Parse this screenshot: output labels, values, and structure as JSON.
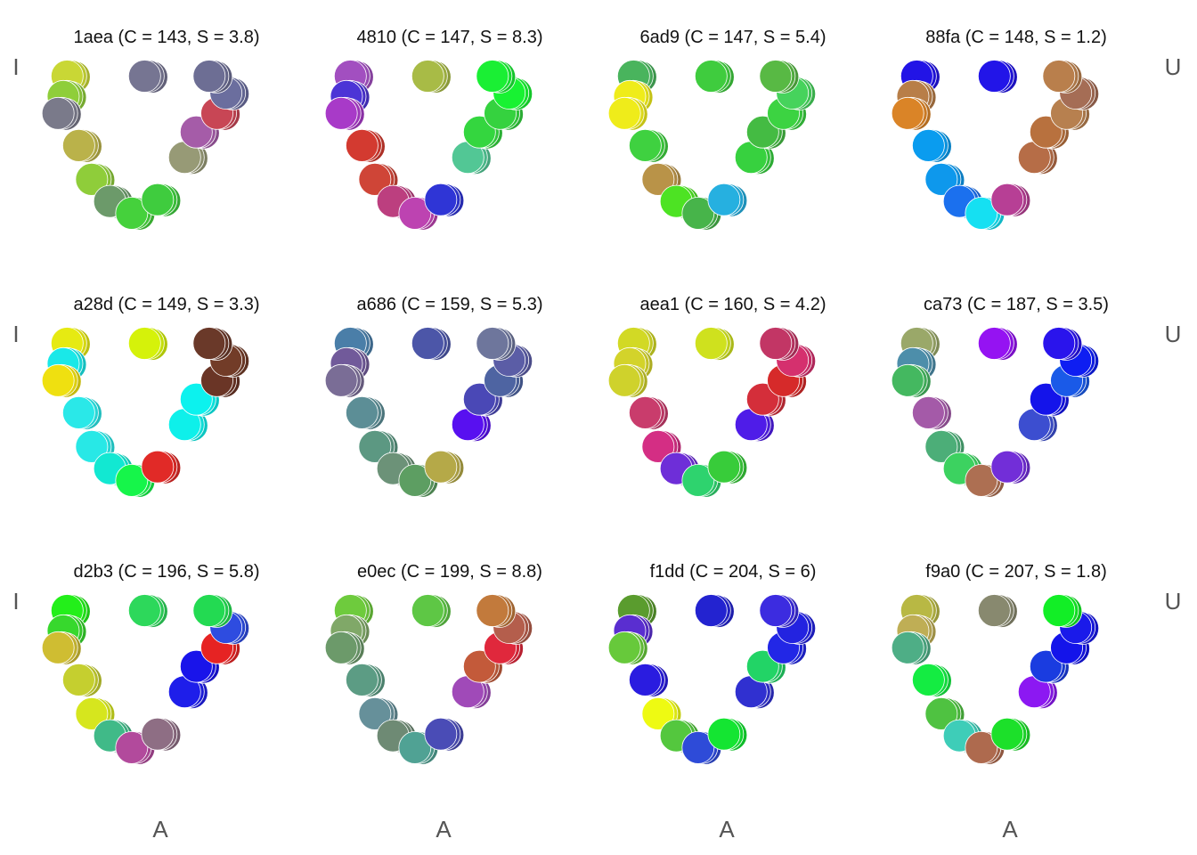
{
  "chart_data": {
    "type": "scatter",
    "title": "",
    "xlabel": "",
    "ylabel": "",
    "grid": false,
    "legend": "none",
    "vowel_labels": {
      "left": "I",
      "right": "U",
      "bottom": "A"
    },
    "xlim": [
      0,
      20
    ],
    "ylim": [
      0,
      13
    ],
    "positions": [
      [
        2.3,
        12.5
      ],
      [
        2.0,
        11.3
      ],
      [
        1.6,
        10.3
      ],
      [
        3.2,
        8.4
      ],
      [
        4.2,
        6.4
      ],
      [
        5.6,
        5.1
      ],
      [
        7.3,
        4.4
      ],
      [
        9.3,
        5.2
      ],
      [
        11.4,
        7.7
      ],
      [
        12.3,
        9.2
      ],
      [
        13.9,
        10.3
      ],
      [
        14.6,
        11.5
      ],
      [
        13.3,
        12.5
      ],
      [
        8.3,
        12.5
      ]
    ],
    "panels": [
      {
        "title": "1aea (C = 143, S = 3.8)",
        "colors": [
          "#c9d735",
          "#8fce3a",
          "#7a7a8a",
          "#bab24a",
          "#8fcd3a",
          "#6c9a6a",
          "#45d13c",
          "#3fcc3e",
          "#979a76",
          "#a55ca8",
          "#c84655",
          "#6b6e9e",
          "#6d6e94",
          "#767592"
        ]
      },
      {
        "title": "4810 (C = 147, S = 8.3)",
        "colors": [
          "#a24fc0",
          "#4c34d6",
          "#a83ac8",
          "#d33a30",
          "#cf4537",
          "#bc3f7f",
          "#bd43b1",
          "#2f35d6",
          "#52c795",
          "#34d63f",
          "#35d23f",
          "#18f232",
          "#1aef34",
          "#a8bb46"
        ]
      },
      {
        "title": "6ad9 (C = 147, S = 5.4)",
        "colors": [
          "#49b45d",
          "#efec1a",
          "#efec1a",
          "#3fd140",
          "#b99348",
          "#4de323",
          "#47b44a",
          "#26b0e0",
          "#37d13f",
          "#44bb43",
          "#3cd342",
          "#46d35c",
          "#58b944",
          "#3fcc3e"
        ]
      },
      {
        "title": "88fa (C = 148, S = 1.2)",
        "colors": [
          "#2214e6",
          "#b87e48",
          "#da8427",
          "#0a9cef",
          "#0e98ec",
          "#1b70ee",
          "#15e0f2",
          "#b73f95",
          "#b66d47",
          "#b8713e",
          "#b7804f",
          "#a56d55",
          "#b97f4c",
          "#2215e8"
        ]
      },
      {
        "title": "a28d (C = 149, S = 3.3)",
        "colors": [
          "#e6ea12",
          "#1ae8e8",
          "#efe010",
          "#2ae8e8",
          "#28e8e6",
          "#12e8d2",
          "#16f54a",
          "#e12a27",
          "#0ef0ea",
          "#0cf2ee",
          "#6a3526",
          "#723c28",
          "#6a3929",
          "#d5f20a"
        ]
      },
      {
        "title": "a686 (C = 159, S = 5.3)",
        "colors": [
          "#4a7ea8",
          "#715a9a",
          "#7a6d96",
          "#5c8e96",
          "#5c9882",
          "#6c9278",
          "#5d9e62",
          "#b5a948",
          "#5810f0",
          "#4a48b6",
          "#4e64a2",
          "#5b5da6",
          "#6e769c",
          "#4c56a8"
        ]
      },
      {
        "title": "aea1 (C = 160, S = 4.2)",
        "colors": [
          "#d2d925",
          "#d3d32a",
          "#cfd22c",
          "#c93c6c",
          "#d42e84",
          "#6e2ed8",
          "#2ed36e",
          "#38cc3a",
          "#4f1ce8",
          "#d42e3a",
          "#d62a2a",
          "#d5306e",
          "#c23665",
          "#cfe11e"
        ]
      },
      {
        "title": "ca73 (C = 187, S = 3.5)",
        "colors": [
          "#9aa869",
          "#4d8eaa",
          "#44b860",
          "#a45aa8",
          "#4cae78",
          "#3cd260",
          "#ad6f52",
          "#722ed8",
          "#3c4ed0",
          "#1414ea",
          "#1a5ae8",
          "#0e1ef2",
          "#2a14ec",
          "#9513f2"
        ]
      },
      {
        "title": "d2b3 (C = 196, S = 5.8)",
        "colors": [
          "#23ef1a",
          "#37d82d",
          "#cfbd32",
          "#c5cf2f",
          "#d6e61e",
          "#40ba88",
          "#b24a9c",
          "#8e6e84",
          "#1e1eea",
          "#1914ea",
          "#e62323",
          "#2e4ce0",
          "#23da52",
          "#2dd85b"
        ]
      },
      {
        "title": "e0ec (C = 199, S = 8.8)",
        "colors": [
          "#6ecb3d",
          "#80a868",
          "#6c9a6a",
          "#5c9c84",
          "#66909a",
          "#6e8a74",
          "#50a294",
          "#4a4cb6",
          "#a04ab8",
          "#c35a3a",
          "#e0283c",
          "#b45e4c",
          "#c27a3c",
          "#5ec745"
        ]
      },
      {
        "title": "f1dd (C = 204, S = 6)",
        "colors": [
          "#5a9c2e",
          "#5a2ed0",
          "#67c93b",
          "#2a1ce0",
          "#eefa12",
          "#54c73e",
          "#2e4bd8",
          "#14e532",
          "#3030d0",
          "#22d466",
          "#2227e6",
          "#2323e0",
          "#3c2ce0",
          "#2323d0"
        ]
      },
      {
        "title": "f9a0 (C = 207, S = 1.8)",
        "colors": [
          "#b8b844",
          "#bfae55",
          "#4eae86",
          "#14ec42",
          "#4fc241",
          "#3ecdb8",
          "#ae6a4e",
          "#1ce02a",
          "#8c18f2",
          "#1a3ce0",
          "#1414ea",
          "#1a1aea",
          "#12ee26",
          "#88896f"
        ]
      }
    ]
  }
}
